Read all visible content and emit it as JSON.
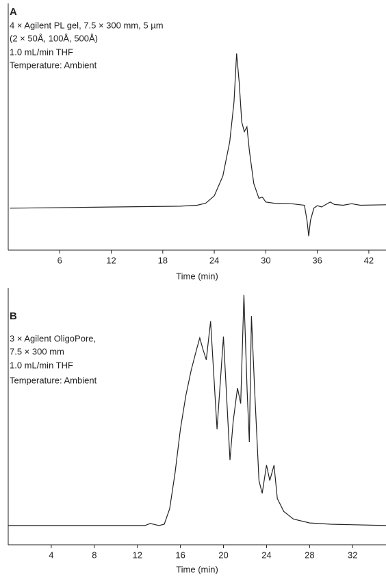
{
  "chart_data": [
    {
      "type": "line",
      "title": "A",
      "annotation": [
        "4 × Agilent PL gel, 7.5 × 300 mm, 5 µm",
        "(2 × 50Å, 100Å, 500Å)",
        "1.0 mL/min THF",
        "Temperature: Ambient"
      ],
      "x_label": "Time (min)",
      "color": "#222222",
      "x": [
        0.2,
        8,
        15,
        20,
        22,
        23,
        24,
        25,
        25.8,
        26.3,
        26.6,
        26.9,
        27.2,
        27.5,
        27.8,
        28.1,
        28.6,
        29.2,
        29.6,
        30,
        31,
        33,
        34.5,
        34.8,
        35.0,
        35.2,
        35.6,
        36,
        36.5,
        37,
        37.5,
        38,
        39,
        40,
        41,
        44
      ],
      "values": [
        17,
        17.3,
        17.6,
        17.8,
        18.2,
        19,
        22,
        30,
        44,
        60,
        79.7,
        68,
        52,
        48,
        50,
        40,
        27,
        21,
        21.5,
        19.5,
        19,
        18.8,
        18.2,
        12,
        5.6,
        12,
        17,
        18,
        17.5,
        18.5,
        19.5,
        18.5,
        18.2,
        18.8,
        18.2,
        18.4
      ],
      "xlim": [
        0,
        44
      ],
      "ylim": [
        0,
        100
      ],
      "xticks": [
        6,
        12,
        18,
        24,
        30,
        36,
        42
      ]
    },
    {
      "type": "line",
      "title": "B",
      "annotation": [
        "3 × Agilent OligoPore,",
        "7.5 × 300 mm",
        "1.0 mL/min THF",
        "Temperature: Ambient"
      ],
      "x_label": "Time (min)",
      "color": "#222222",
      "x": [
        0,
        12.7,
        13.2,
        14,
        14.5,
        15,
        15.5,
        16,
        16.5,
        17,
        17.5,
        17.8,
        18.1,
        18.4,
        18.8,
        19.4,
        20.0,
        20.6,
        20.9,
        21.3,
        21.6,
        21.9,
        22.2,
        22.4,
        22.6,
        22.9,
        23.3,
        23.6,
        24.0,
        24.3,
        24.7,
        25.0,
        25.6,
        26.5,
        28,
        30,
        35.1
      ],
      "values": [
        7.5,
        7.5,
        8.3,
        7.5,
        8,
        14,
        28,
        45,
        58,
        68,
        76,
        80.5,
        76,
        72,
        87,
        45,
        81,
        33,
        48,
        61,
        55,
        97.3,
        60,
        40,
        89,
        60,
        25,
        20,
        31,
        25,
        31,
        18,
        13,
        10,
        8.5,
        8,
        7.5
      ],
      "xlim": [
        0,
        35.1
      ],
      "ylim": [
        0,
        100
      ],
      "xticks": [
        4,
        8,
        12,
        16,
        20,
        24,
        28,
        32
      ]
    }
  ]
}
